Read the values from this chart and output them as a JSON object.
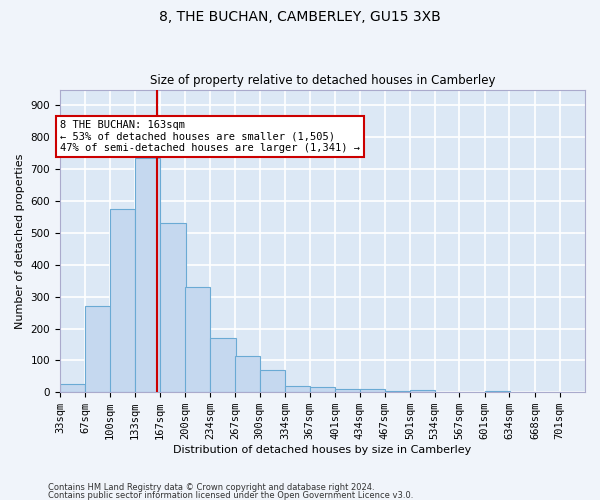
{
  "title1": "8, THE BUCHAN, CAMBERLEY, GU15 3XB",
  "title2": "Size of property relative to detached houses in Camberley",
  "xlabel": "Distribution of detached houses by size in Camberley",
  "ylabel": "Number of detached properties",
  "bins": [
    33,
    67,
    100,
    133,
    167,
    200,
    234,
    267,
    300,
    334,
    367,
    401,
    434,
    467,
    501,
    534,
    567,
    601,
    634,
    668,
    701
  ],
  "counts": [
    25,
    270,
    575,
    735,
    530,
    330,
    170,
    115,
    70,
    20,
    15,
    10,
    10,
    5,
    8,
    0,
    0,
    5,
    0,
    0,
    0
  ],
  "bar_color": "#c5d8ef",
  "bar_edge_color": "#6aaad4",
  "vline_x": 163,
  "vline_color": "#cc0000",
  "annotation_line1": "8 THE BUCHAN: 163sqm",
  "annotation_line2": "← 53% of detached houses are smaller (1,505)",
  "annotation_line3": "47% of semi-detached houses are larger (1,341) →",
  "annotation_box_facecolor": "#ffffff",
  "annotation_box_edgecolor": "#cc0000",
  "plot_bg_color": "#dce8f5",
  "grid_color": "#ffffff",
  "fig_bg_color": "#f0f4fa",
  "ylim": [
    0,
    950
  ],
  "yticks": [
    0,
    100,
    200,
    300,
    400,
    500,
    600,
    700,
    800,
    900
  ],
  "title1_fontsize": 10,
  "title2_fontsize": 8.5,
  "ylabel_fontsize": 8,
  "xlabel_fontsize": 8,
  "tick_fontsize": 7.5,
  "footer1": "Contains HM Land Registry data © Crown copyright and database right 2024.",
  "footer2": "Contains public sector information licensed under the Open Government Licence v3.0."
}
